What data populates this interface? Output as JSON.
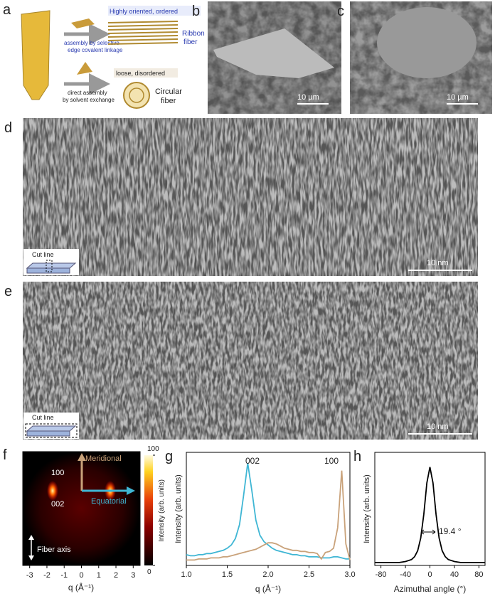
{
  "panels": {
    "a": {
      "label": "a",
      "top_text": "Highly oriented, ordered",
      "top_arrow": [
        "assembly by selective",
        "edge covalent linkage"
      ],
      "top_fiber": [
        "Ribbon",
        "fiber"
      ],
      "bottom_text": "loose, disordered",
      "bottom_arrow": [
        "direct assembly",
        "by solvent exchange"
      ],
      "bottom_fiber": [
        "Circular",
        "fiber"
      ]
    },
    "b": {
      "label": "b",
      "scale": "10 µm"
    },
    "c": {
      "label": "c",
      "scale": "10 µm"
    },
    "d": {
      "label": "d",
      "inset": "Cut line",
      "scale": "10 nm"
    },
    "e": {
      "label": "e",
      "inset": "Cut line",
      "scale": "10 nm"
    },
    "f": {
      "label": "f",
      "peak_top": "100",
      "peak_side": "002",
      "meridional": "Meridional",
      "equatorial": "Equatorial",
      "fiber_axis": "Fiber axis",
      "xlim": [
        -3.4,
        3.4
      ],
      "xticks": [
        -3,
        -2,
        -1,
        0,
        1,
        2,
        3
      ],
      "xlabel": "q (Å⁻¹)",
      "colorbar_ticks": [
        0,
        100
      ],
      "colorbar_label": "Intensity (arb. units)"
    }
  },
  "chart_data": [
    {
      "type": "line",
      "label": "g",
      "ylabel": "Intensity (arb. units)",
      "xlabel": "q (Å⁻¹)",
      "annotations": [
        "002",
        "100"
      ],
      "xlim": [
        1,
        3
      ],
      "ylim": [
        0,
        105
      ],
      "xticks": [
        {
          "value": 1,
          "label": "1.0"
        },
        1.5,
        {
          "value": 2,
          "label": "2.0"
        },
        2.5,
        {
          "value": 3,
          "label": "3.0"
        }
      ],
      "x": [
        1,
        1.05,
        1.1,
        1.15,
        1.2,
        1.25,
        1.3,
        1.35,
        1.4,
        1.45,
        1.5,
        1.55,
        1.6,
        1.65,
        1.7,
        1.75,
        1.8,
        1.85,
        1.9,
        1.95,
        2,
        2.05,
        2.1,
        2.15,
        2.2,
        2.25,
        2.3,
        2.35,
        2.4,
        2.45,
        2.5,
        2.55,
        2.6,
        2.65,
        2.7,
        2.75,
        2.8,
        2.85,
        2.9,
        2.95,
        3
      ],
      "series": [
        {
          "color": "#3fb6d4",
          "values": [
            10,
            9,
            9,
            10,
            10,
            11,
            11,
            12,
            13,
            14,
            16,
            19,
            25,
            38,
            65,
            95,
            70,
            42,
            28,
            22,
            19,
            16,
            14,
            13,
            12,
            11,
            10,
            10,
            9,
            9,
            8,
            8,
            8,
            7,
            7,
            7,
            8,
            8,
            7,
            6,
            6
          ]
        },
        {
          "color": "#c9a27a",
          "values": [
            5,
            5,
            5,
            6,
            6,
            6,
            7,
            7,
            7,
            8,
            8,
            9,
            10,
            11,
            12,
            13,
            14,
            15,
            17,
            19,
            21,
            21,
            20,
            18,
            16,
            15,
            14,
            14,
            13,
            13,
            12,
            12,
            11,
            6,
            12,
            13,
            16,
            35,
            88,
            20,
            5
          ]
        }
      ]
    },
    {
      "type": "line",
      "label": "h",
      "ylabel": "Intensity (arb. units)",
      "xlabel": "Azimuthal angle (°)",
      "annotations": [
        "19.4 °"
      ],
      "xlim": [
        -90,
        90
      ],
      "ylim": [
        0,
        115
      ],
      "xticks": [
        -80,
        -40,
        0,
        40,
        80
      ],
      "x": [
        -90,
        -80,
        -70,
        -60,
        -50,
        -40,
        -30,
        -25,
        -20,
        -15,
        -10,
        -5,
        0,
        5,
        10,
        15,
        20,
        25,
        30,
        40,
        50,
        60,
        70,
        80,
        90
      ],
      "series": [
        {
          "color": "#000000",
          "values": [
            3,
            3,
            3,
            3,
            3,
            4,
            6,
            9,
            15,
            28,
            52,
            84,
            100,
            84,
            52,
            28,
            15,
            9,
            6,
            4,
            3,
            3,
            3,
            3,
            3
          ]
        }
      ]
    }
  ]
}
